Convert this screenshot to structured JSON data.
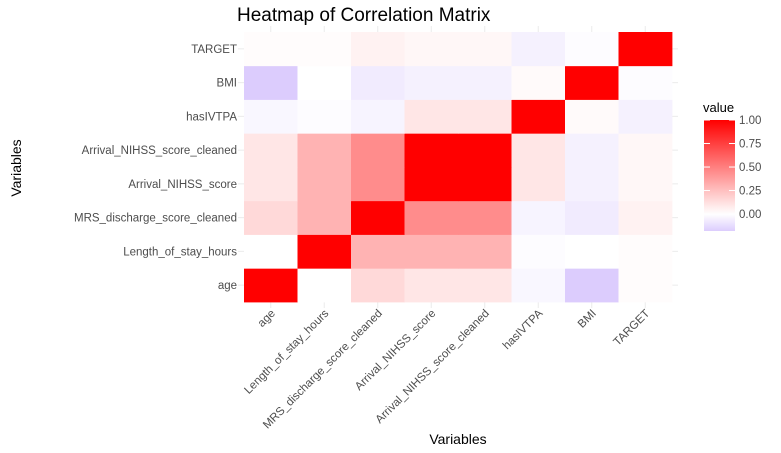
{
  "chart_data": {
    "type": "heatmap",
    "title": "Heatmap of Correlation Matrix",
    "xlabel": "Variables",
    "ylabel": "Variables",
    "x_categories": [
      "age",
      "Length_of_stay_hours",
      "MRS_discharge_score_cleaned",
      "Arrival_NIHSS_score",
      "Arrival_NIHSS_score_cleaned",
      "hasIVTPA",
      "BMI",
      "TARGET"
    ],
    "y_categories": [
      "age",
      "Length_of_stay_hours",
      "MRS_discharge_score_cleaned",
      "Arrival_NIHSS_score",
      "Arrival_NIHSS_score_cleaned",
      "hasIVTPA",
      "BMI",
      "TARGET"
    ],
    "values": [
      [
        1.0,
        0.0,
        0.15,
        0.1,
        0.1,
        -0.03,
        -0.18,
        0.01
      ],
      [
        0.0,
        1.0,
        0.3,
        0.3,
        0.3,
        -0.01,
        0.0,
        0.01
      ],
      [
        0.15,
        0.3,
        1.0,
        0.45,
        0.45,
        -0.04,
        -0.07,
        0.05
      ],
      [
        0.1,
        0.3,
        0.45,
        1.0,
        1.0,
        0.1,
        -0.05,
        0.03
      ],
      [
        0.1,
        0.3,
        0.45,
        1.0,
        1.0,
        0.1,
        -0.05,
        0.03
      ],
      [
        -0.03,
        -0.01,
        -0.04,
        0.1,
        0.1,
        1.0,
        0.02,
        -0.05
      ],
      [
        -0.18,
        0.0,
        -0.07,
        -0.05,
        -0.05,
        0.02,
        1.0,
        -0.01
      ],
      [
        0.01,
        0.01,
        0.05,
        0.03,
        0.03,
        -0.05,
        -0.01,
        1.0
      ]
    ],
    "color_scale": {
      "low": "#dcccfd",
      "mid": "#ffffff",
      "high": "#ff0000",
      "midpoint": 0,
      "limits": [
        -0.18,
        1.0
      ]
    },
    "legend": {
      "title": "value",
      "ticks": [
        0.0,
        0.25,
        0.5,
        0.75,
        1.0
      ],
      "tick_labels": [
        "0.00",
        "0.25",
        "0.50",
        "0.75",
        "1.00"
      ],
      "placement": "right"
    },
    "grid": true
  }
}
